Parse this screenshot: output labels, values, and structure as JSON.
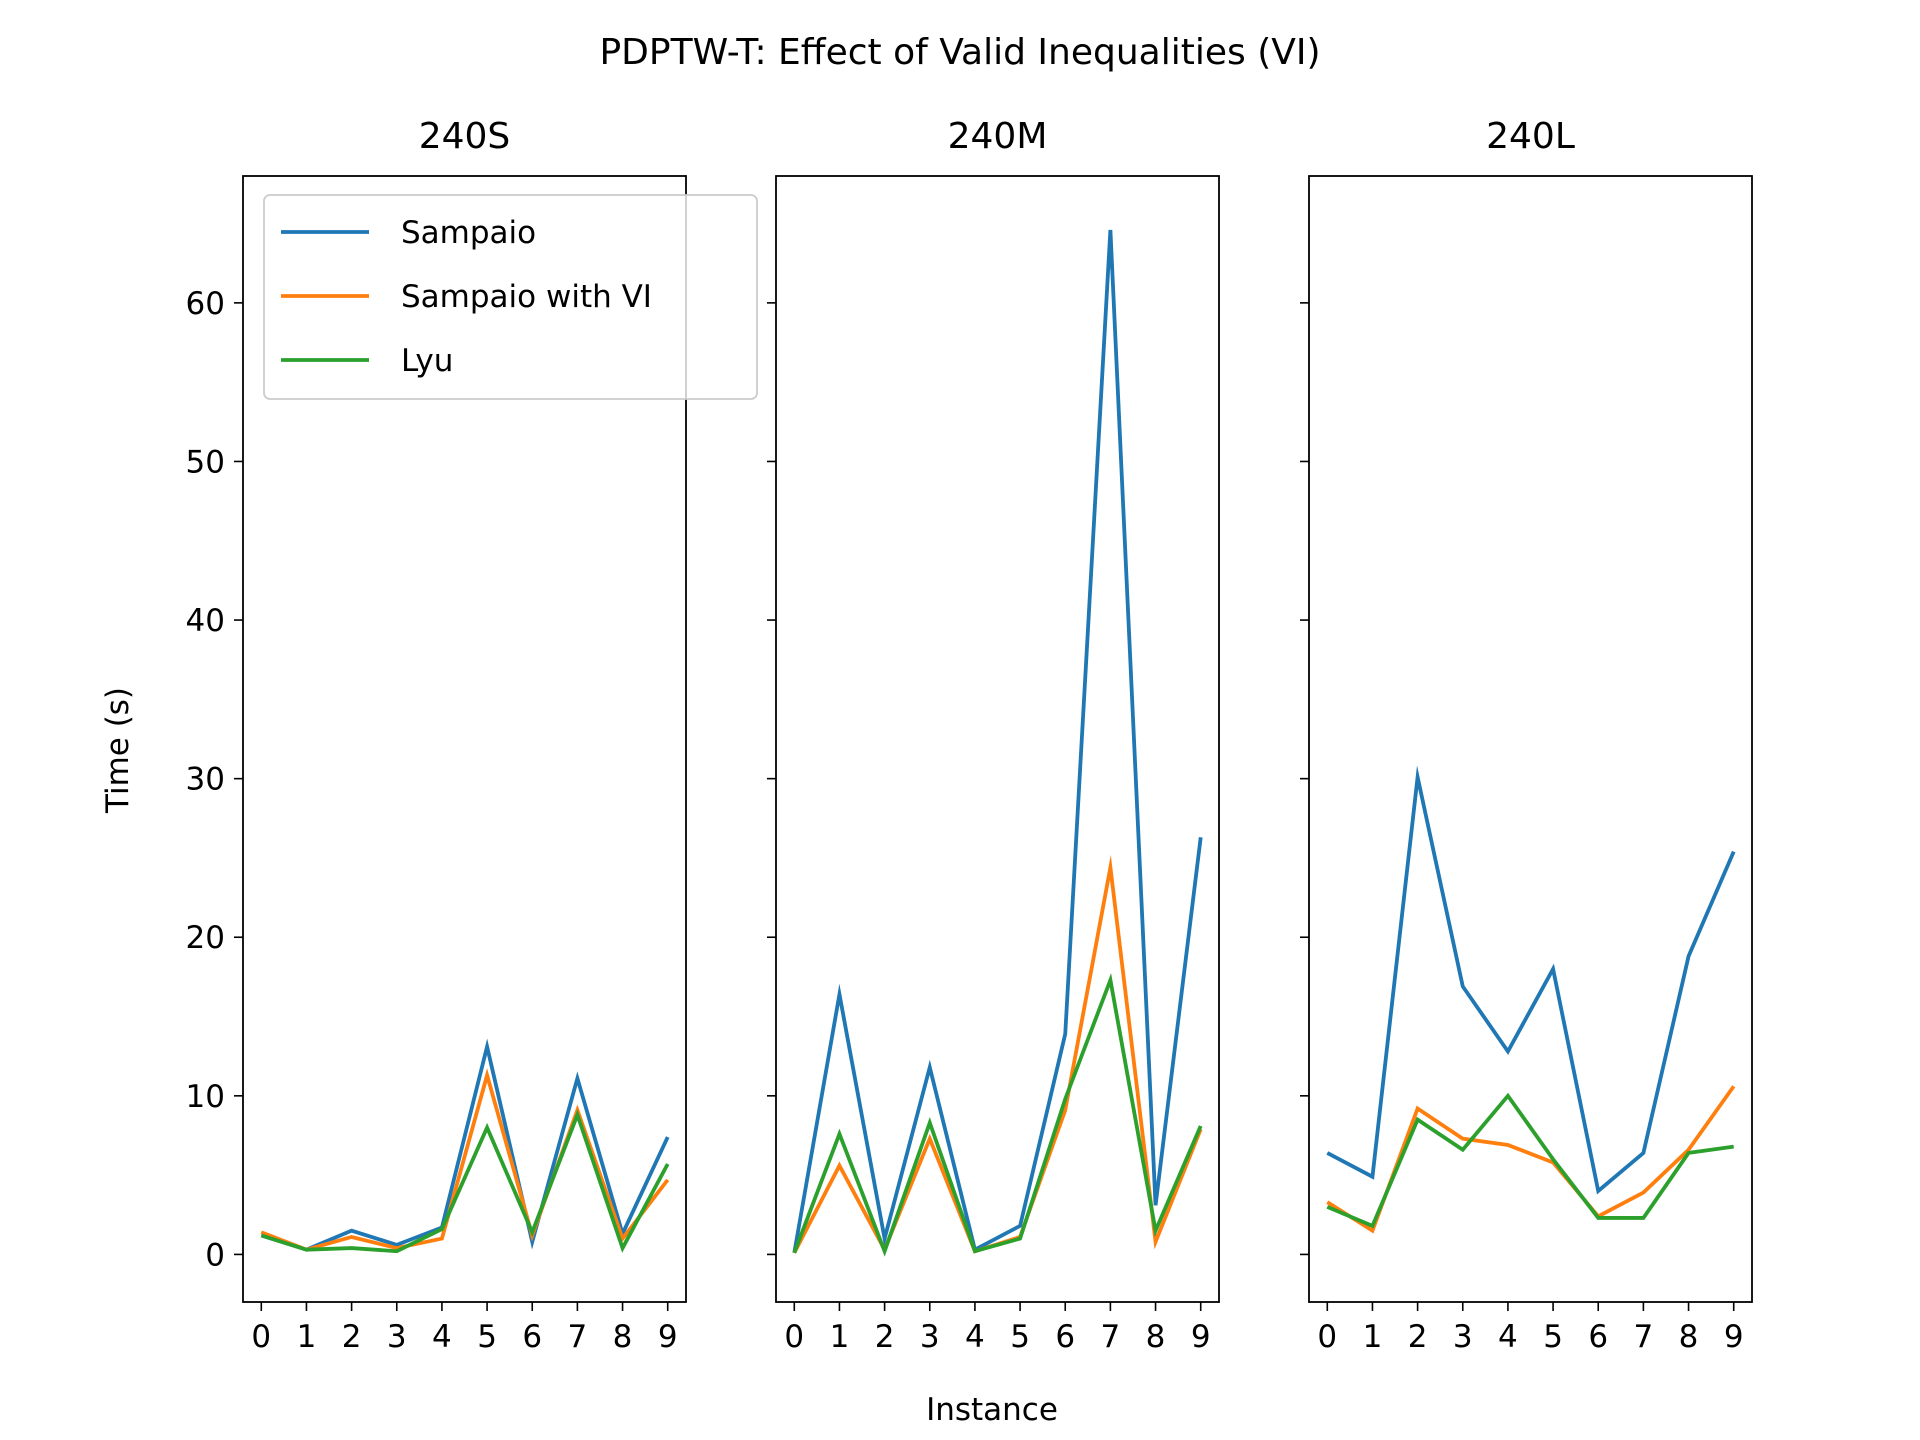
{
  "figure": {
    "suptitle": "PDPTW-T: Effect of Valid Inequalities (VI)",
    "xlabel": "Instance",
    "ylabel": "Time (s)"
  },
  "legend": {
    "placement": "upper-left of first panel",
    "entries": [
      {
        "name": "Sampaio",
        "color": "#1f77b4"
      },
      {
        "name": "Sampaio with VI",
        "color": "#ff7f0e"
      },
      {
        "name": "Lyu",
        "color": "#2ca02c"
      }
    ]
  },
  "chart_data": [
    {
      "type": "line",
      "title": "240S",
      "x": [
        0,
        1,
        2,
        3,
        4,
        5,
        6,
        7,
        8,
        9
      ],
      "xticks": [
        "0",
        "1",
        "2",
        "3",
        "4",
        "5",
        "6",
        "7",
        "8",
        "9"
      ],
      "ylim": [
        -3,
        68
      ],
      "yticks": [
        "0",
        "10",
        "20",
        "30",
        "40",
        "50",
        "60"
      ],
      "series": [
        {
          "name": "Sampaio",
          "color": "#1f77b4",
          "values": [
            1.2,
            0.3,
            1.5,
            0.6,
            1.7,
            13.1,
            0.8,
            11.1,
            1.3,
            7.4
          ]
        },
        {
          "name": "Sampaio with VI",
          "color": "#ff7f0e",
          "values": [
            1.4,
            0.3,
            1.1,
            0.4,
            1.0,
            11.3,
            1.2,
            9.1,
            1.0,
            4.7
          ]
        },
        {
          "name": "Lyu",
          "color": "#2ca02c",
          "values": [
            1.2,
            0.3,
            0.4,
            0.2,
            1.6,
            8.0,
            1.4,
            8.8,
            0.4,
            5.7
          ]
        }
      ]
    },
    {
      "type": "line",
      "title": "240M",
      "x": [
        0,
        1,
        2,
        3,
        4,
        5,
        6,
        7,
        8,
        9
      ],
      "xticks": [
        "0",
        "1",
        "2",
        "3",
        "4",
        "5",
        "6",
        "7",
        "8",
        "9"
      ],
      "ylim": [
        -3,
        68
      ],
      "yticks": [],
      "series": [
        {
          "name": "Sampaio",
          "color": "#1f77b4",
          "values": [
            0.1,
            16.4,
            1.0,
            11.8,
            0.3,
            1.8,
            13.9,
            64.6,
            3.1,
            26.3
          ]
        },
        {
          "name": "Sampaio with VI",
          "color": "#ff7f0e",
          "values": [
            0.1,
            5.6,
            0.3,
            7.3,
            0.2,
            1.1,
            9.1,
            24.4,
            0.8,
            7.9
          ]
        },
        {
          "name": "Lyu",
          "color": "#2ca02c",
          "values": [
            0.1,
            7.6,
            0.2,
            8.3,
            0.2,
            1.0,
            9.8,
            17.3,
            1.5,
            8.1
          ]
        }
      ]
    },
    {
      "type": "line",
      "title": "240L",
      "x": [
        0,
        1,
        2,
        3,
        4,
        5,
        6,
        7,
        8,
        9
      ],
      "xticks": [
        "0",
        "1",
        "2",
        "3",
        "4",
        "5",
        "6",
        "7",
        "8",
        "9"
      ],
      "ylim": [
        -3,
        68
      ],
      "yticks": [],
      "series": [
        {
          "name": "Sampaio",
          "color": "#1f77b4",
          "values": [
            6.4,
            4.9,
            30.1,
            16.9,
            12.8,
            18.0,
            4.0,
            6.4,
            18.8,
            25.4
          ]
        },
        {
          "name": "Sampaio with VI",
          "color": "#ff7f0e",
          "values": [
            3.3,
            1.5,
            9.2,
            7.3,
            6.9,
            5.8,
            2.4,
            3.9,
            6.6,
            10.6
          ]
        },
        {
          "name": "Lyu",
          "color": "#2ca02c",
          "values": [
            3.0,
            1.8,
            8.5,
            6.6,
            10.0,
            6.0,
            2.3,
            2.3,
            6.4,
            6.8
          ]
        }
      ]
    }
  ]
}
